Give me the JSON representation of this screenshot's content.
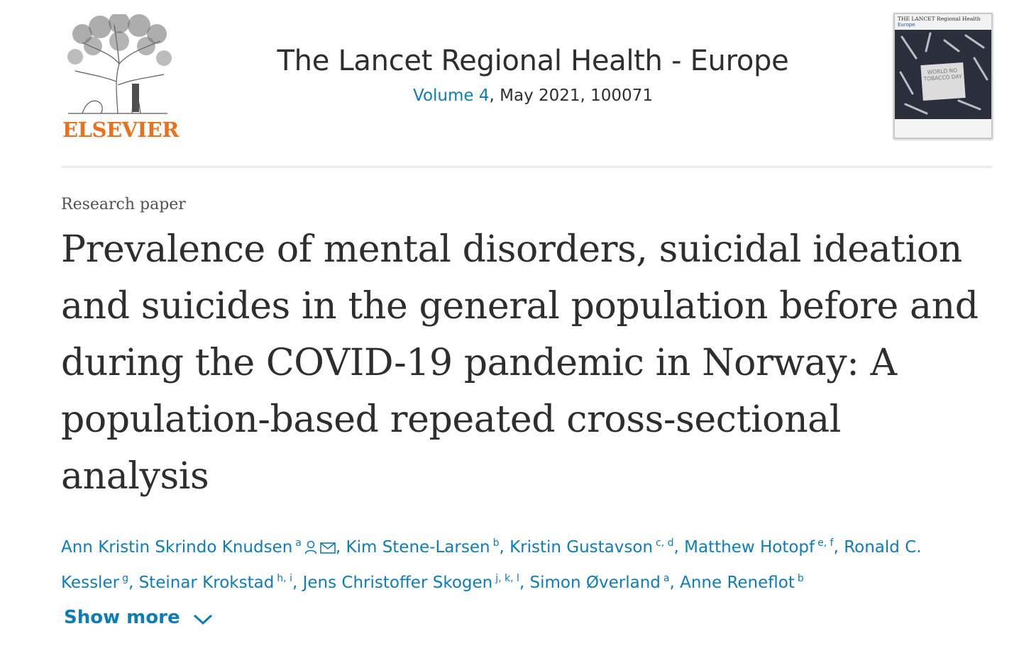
{
  "header": {
    "publisher_wordmark": "ELSEVIER",
    "journal_title": "The Lancet Regional Health - Europe",
    "issue": {
      "volume_link": "Volume 4",
      "rest": ", May 2021, 100071"
    },
    "cover": {
      "brand": "THE LANCET Regional Health",
      "sub": "Europe",
      "note": "WORLD NO TOBACCO DAY"
    }
  },
  "article": {
    "type": "Research paper",
    "title": "Prevalence of mental disorders, suicidal ideation and suicides in the general population before and during the COVID-19 pandemic in Norway: A population-based repeated cross-sectional analysis"
  },
  "authors": [
    {
      "name": "Ann Kristin Skrindo Knudsen",
      "sup": "a",
      "icons": [
        "person-icon",
        "envelope-icon"
      ]
    },
    {
      "name": "Kim Stene-Larsen",
      "sup": "b"
    },
    {
      "name": "Kristin Gustavson",
      "sup": "c, d"
    },
    {
      "name": "Matthew Hotopf",
      "sup": "e, f"
    },
    {
      "name": "Ronald C. Kessler",
      "sup": "g"
    },
    {
      "name": "Steinar Krokstad",
      "sup": "h, i"
    },
    {
      "name": "Jens Christoffer Skogen",
      "sup": "j, k, l"
    },
    {
      "name": "Simon Øverland",
      "sup": "a"
    },
    {
      "name": "Anne Reneflot",
      "sup": "b"
    }
  ],
  "show_more_label": "Show more",
  "colors": {
    "link": "#0c7dbb",
    "text": "#2e2e2e",
    "elsevier_orange": "#e9711c",
    "divider": "#ebebeb"
  }
}
